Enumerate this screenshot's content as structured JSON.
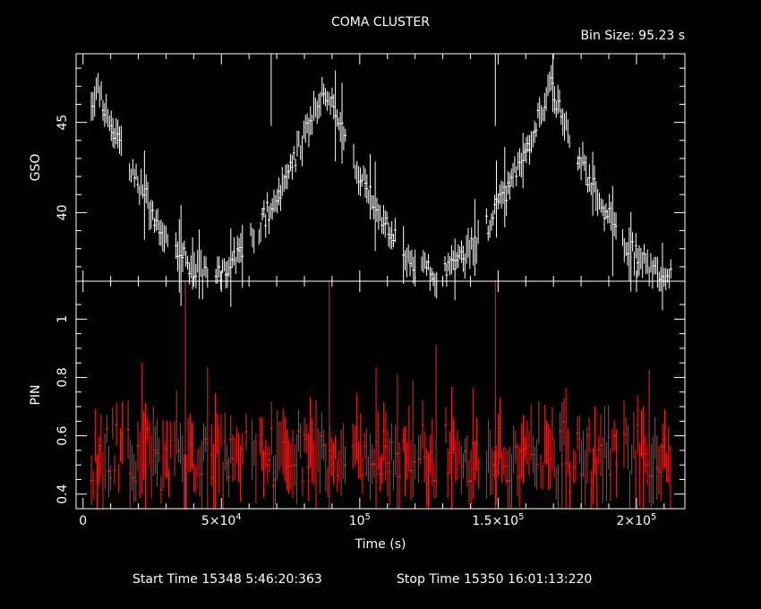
{
  "title": "COMA CLUSTER",
  "bin_size": "Bin Size: 95.23 s",
  "footer": {
    "start": "Start Time 15348  5:46:20:363",
    "stop": "Stop Time 15350 16:01:13:220"
  },
  "colors": {
    "gso": "#ffffff",
    "pin": "#ff2020",
    "axes": "#ffffff",
    "background": "#000000"
  },
  "chart_data": [
    {
      "type": "scatter",
      "panel": "top",
      "ylabel": "GSO",
      "xlim": [
        -2500,
        217500
      ],
      "ylim": [
        36.2,
        48.8
      ],
      "yticks": [
        {
          "v": 40,
          "label": "40"
        },
        {
          "v": 45,
          "label": "45"
        }
      ],
      "ybase_min": 36.5,
      "ybase_max": 47.0,
      "x_start": 3000,
      "x_end": 212500,
      "period": 82000,
      "phase_x": 5000,
      "spike_x": [
        68000,
        149000
      ],
      "spike_low": 44.8,
      "spike_high": 48.8
    },
    {
      "type": "scatter",
      "panel": "bottom",
      "ylabel": "PIN",
      "xlabel": "Time (s)",
      "xlim": [
        -2500,
        217500
      ],
      "ylim": [
        0.35,
        1.13
      ],
      "yticks": [
        {
          "v": 0.4,
          "label": "0.4"
        },
        {
          "v": 0.6,
          "label": "0.6"
        },
        {
          "v": 0.8,
          "label": "0.8"
        },
        {
          "v": 1.0,
          "label": "1"
        }
      ],
      "xticks": [
        {
          "v": 0,
          "label": "0",
          "sup": ""
        },
        {
          "v": 50000,
          "label": "5×10",
          "sup": "4"
        },
        {
          "v": 100000,
          "label": "10",
          "sup": "5"
        },
        {
          "v": 150000,
          "label": "1.5×10",
          "sup": "5"
        },
        {
          "v": 200000,
          "label": "2×10",
          "sup": "5"
        }
      ],
      "ymean": 0.53,
      "x_start": 3000,
      "x_end": 212500,
      "tall_bars_x": [
        37000,
        89000,
        149000
      ],
      "tall_bar_low": 0.35,
      "tall_bar_high": 1.13
    }
  ]
}
